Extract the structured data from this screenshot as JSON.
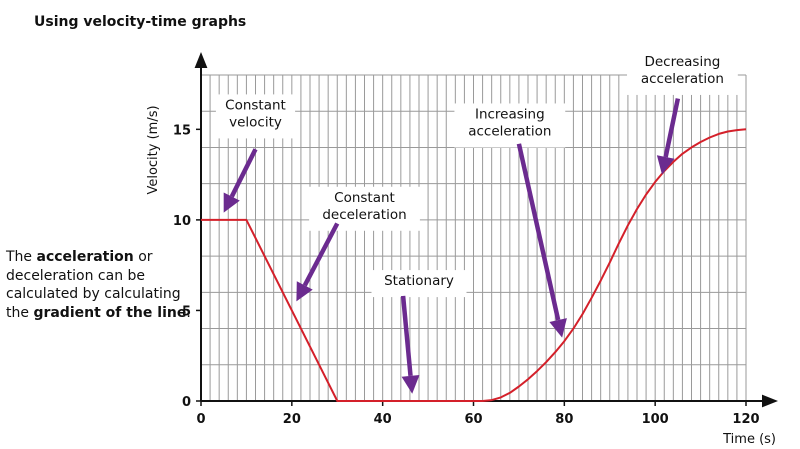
{
  "title": "Using velocity-time graphs",
  "side_note": {
    "part1": "The ",
    "bold1": "acceleration",
    "part2": " or deceleration can be calculated by calculating the ",
    "bold2": "gradient of the line",
    "part3": "."
  },
  "chart_data": {
    "type": "line",
    "xlabel": "Time (s)",
    "ylabel": "Velocity (m/s)",
    "xlim": [
      0,
      120
    ],
    "ylim": [
      0,
      18
    ],
    "x_ticks": [
      0,
      20,
      40,
      60,
      80,
      100,
      120
    ],
    "y_ticks": [
      0,
      5,
      10,
      15
    ],
    "grid": true,
    "grid_minor_step": 2,
    "line_color": "#d4202a",
    "arrow_color": "#6b2b8f",
    "series": [
      {
        "points": [
          [
            0,
            10
          ],
          [
            10,
            10
          ],
          [
            30,
            0
          ],
          [
            62,
            0
          ],
          [
            64,
            0.05
          ],
          [
            66,
            0.2
          ],
          [
            68,
            0.45
          ],
          [
            70,
            0.8
          ],
          [
            72,
            1.2
          ],
          [
            74,
            1.65
          ],
          [
            76,
            2.15
          ],
          [
            78,
            2.7
          ],
          [
            80,
            3.3
          ],
          [
            82,
            4.0
          ],
          [
            84,
            4.8
          ],
          [
            86,
            5.7
          ],
          [
            88,
            6.65
          ],
          [
            90,
            7.65
          ],
          [
            92,
            8.7
          ],
          [
            94,
            9.7
          ],
          [
            96,
            10.6
          ],
          [
            98,
            11.4
          ],
          [
            100,
            12.1
          ],
          [
            102,
            12.7
          ],
          [
            104,
            13.2
          ],
          [
            106,
            13.65
          ],
          [
            108,
            14.0
          ],
          [
            110,
            14.3
          ],
          [
            112,
            14.55
          ],
          [
            114,
            14.75
          ],
          [
            116,
            14.88
          ],
          [
            118,
            14.96
          ],
          [
            120,
            15.0
          ]
        ]
      }
    ],
    "annotations": [
      {
        "lines": [
          "Constant",
          "velocity"
        ],
        "text_at": [
          12,
          16.1
        ],
        "arrow_from": [
          12,
          13.9
        ],
        "arrow_to": [
          5,
          10.4
        ]
      },
      {
        "lines": [
          "Constant",
          "deceleration"
        ],
        "text_at": [
          36,
          11.0
        ],
        "arrow_from": [
          30,
          9.8
        ],
        "arrow_to": [
          21,
          5.5
        ]
      },
      {
        "lines": [
          "Stationary"
        ],
        "text_at": [
          48,
          6.4
        ],
        "arrow_from": [
          44.5,
          5.8
        ],
        "arrow_to": [
          46.5,
          0.4
        ]
      },
      {
        "lines": [
          "Increasing",
          "acceleration"
        ],
        "text_at": [
          68,
          15.6
        ],
        "arrow_from": [
          70,
          14.2
        ],
        "arrow_to": [
          79.5,
          3.5
        ]
      },
      {
        "lines": [
          "Decreasing",
          "acceleration"
        ],
        "text_at": [
          106,
          18.5
        ],
        "arrow_from": [
          105,
          16.7
        ],
        "arrow_to": [
          101.5,
          12.5
        ]
      }
    ]
  }
}
